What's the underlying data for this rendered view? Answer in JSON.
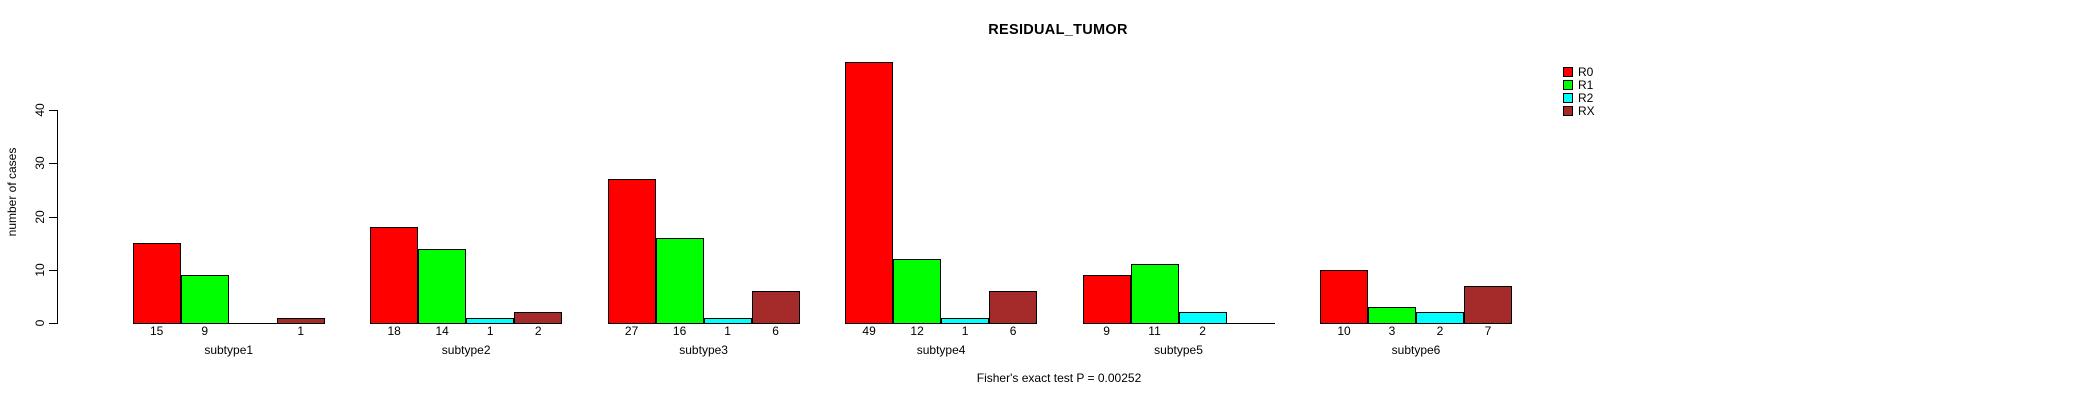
{
  "title": "RESIDUAL_TUMOR",
  "caption": "Fisher's exact test P = 0.00252",
  "yaxis": {
    "label": "number of cases"
  },
  "chart_data": {
    "type": "bar",
    "title": "RESIDUAL_TUMOR",
    "categories": [
      "subtype1",
      "subtype2",
      "subtype3",
      "subtype4",
      "subtype5",
      "subtype6"
    ],
    "series": [
      {
        "name": "R0",
        "color": "#FF0000",
        "values": [
          15,
          18,
          27,
          49,
          9,
          10
        ]
      },
      {
        "name": "R1",
        "color": "#00FF00",
        "values": [
          9,
          14,
          16,
          12,
          11,
          3
        ]
      },
      {
        "name": "R2",
        "color": "#00FFFF",
        "values": [
          0,
          1,
          1,
          1,
          2,
          2
        ]
      },
      {
        "name": "RX",
        "color": "#A52A2A",
        "values": [
          1,
          2,
          6,
          6,
          0,
          7
        ]
      }
    ],
    "xlabel": "",
    "ylabel": "number of cases",
    "ylim": [
      0,
      40
    ],
    "yticks": [
      0,
      10,
      20,
      30,
      40
    ],
    "value_labels": "bar values printed below each bar; zero values left blank",
    "legend_position": "right",
    "annotation": "Fisher's exact test P = 0.00252",
    "grid": false
  }
}
